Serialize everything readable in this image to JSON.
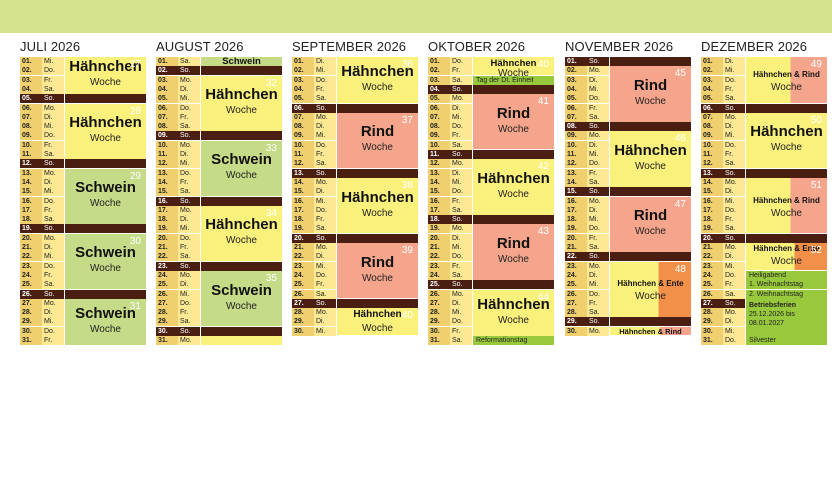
{
  "colors": {
    "top_bar": "#d5e38f",
    "weekday_row": "#fde993",
    "day_num_cell": "#f0d06e",
    "sunday_band": "#4a1f12",
    "haehnchen": "#faf17d",
    "rind": "#f4a58c",
    "schwein": "#c6db88",
    "ente": "#f29049",
    "holiday_green": "#98c93c",
    "week_number": "#ffffff"
  },
  "months": [
    {
      "title": "JULI 2026",
      "days": [
        [
          "01.",
          "Mi."
        ],
        [
          "02.",
          "Do."
        ],
        [
          "03.",
          "Fr."
        ],
        [
          "04.",
          "Sa."
        ],
        [
          "05.",
          "So."
        ],
        [
          "06.",
          "Mo."
        ],
        [
          "07.",
          "Di."
        ],
        [
          "08.",
          "Mi."
        ],
        [
          "09.",
          "Do."
        ],
        [
          "10.",
          "Fr."
        ],
        [
          "11.",
          "Sa."
        ],
        [
          "12.",
          "So."
        ],
        [
          "13.",
          "Mo."
        ],
        [
          "14.",
          "Di."
        ],
        [
          "15.",
          "Mi."
        ],
        [
          "16.",
          "Do."
        ],
        [
          "17.",
          "Fr."
        ],
        [
          "18.",
          "Sa."
        ],
        [
          "19.",
          "So."
        ],
        [
          "20.",
          "Mo."
        ],
        [
          "21.",
          "Di."
        ],
        [
          "22.",
          "Mi."
        ],
        [
          "23.",
          "Do."
        ],
        [
          "24.",
          "Fr."
        ],
        [
          "25.",
          "Sa."
        ],
        [
          "26.",
          "So."
        ],
        [
          "27.",
          "Mo."
        ],
        [
          "28.",
          "Di."
        ],
        [
          "29.",
          "Mi."
        ],
        [
          "30.",
          "Do."
        ],
        [
          "31.",
          "Fr."
        ]
      ],
      "blocks": [
        {
          "start": 0,
          "rows": 4,
          "type": "haehnchen",
          "title": "Hähnchen",
          "label": "Woche",
          "kw": "27"
        },
        {
          "start": 5,
          "rows": 6,
          "type": "haehnchen",
          "title": "Hähnchen",
          "label": "Woche",
          "kw": "28"
        },
        {
          "start": 12,
          "rows": 6,
          "type": "schwein",
          "title": "Schwein",
          "label": "Woche",
          "kw": "29"
        },
        {
          "start": 19,
          "rows": 6,
          "type": "schwein",
          "title": "Schwein",
          "label": "Woche",
          "kw": "30"
        },
        {
          "start": 26,
          "rows": 5,
          "type": "schwein",
          "title": "Schwein",
          "label": "Woche",
          "kw": "31"
        }
      ],
      "notes": []
    },
    {
      "title": "AUGUST 2026",
      "days": [
        [
          "01.",
          "Sa."
        ],
        [
          "02.",
          "So."
        ],
        [
          "03.",
          "Mo."
        ],
        [
          "04.",
          "Di."
        ],
        [
          "05.",
          "Mi."
        ],
        [
          "06.",
          "Do."
        ],
        [
          "07.",
          "Fr."
        ],
        [
          "08.",
          "Sa."
        ],
        [
          "09.",
          "So."
        ],
        [
          "10.",
          "Mo."
        ],
        [
          "11.",
          "Di."
        ],
        [
          "12.",
          "Mi."
        ],
        [
          "13.",
          "Do."
        ],
        [
          "14.",
          "Fr."
        ],
        [
          "15.",
          "Sa."
        ],
        [
          "16.",
          "So."
        ],
        [
          "17.",
          "Mo."
        ],
        [
          "18.",
          "Di."
        ],
        [
          "19.",
          "Mi."
        ],
        [
          "20.",
          "Do."
        ],
        [
          "21.",
          "Fr."
        ],
        [
          "22.",
          "Sa."
        ],
        [
          "23.",
          "So."
        ],
        [
          "24.",
          "Mo."
        ],
        [
          "25.",
          "Di."
        ],
        [
          "26.",
          "Mi."
        ],
        [
          "27.",
          "Do."
        ],
        [
          "28.",
          "Fr."
        ],
        [
          "29.",
          "Sa."
        ],
        [
          "30.",
          "So."
        ],
        [
          "31.",
          "Mo."
        ]
      ],
      "blocks": [
        {
          "start": 0,
          "rows": 1,
          "type": "schwein",
          "title": "Schwein",
          "label": "",
          "kw": ""
        },
        {
          "start": 2,
          "rows": 6,
          "type": "haehnchen",
          "title": "Hähnchen",
          "label": "Woche",
          "kw": "32"
        },
        {
          "start": 9,
          "rows": 6,
          "type": "schwein",
          "title": "Schwein",
          "label": "Woche",
          "kw": "33"
        },
        {
          "start": 16,
          "rows": 6,
          "type": "haehnchen",
          "title": "Hähnchen",
          "label": "Woche",
          "kw": "34"
        },
        {
          "start": 23,
          "rows": 6,
          "type": "schwein",
          "title": "Schwein",
          "label": "Woche",
          "kw": "35"
        },
        {
          "start": 30,
          "rows": 1,
          "type": "haehnchen",
          "title": "",
          "label": "",
          "kw": ""
        }
      ],
      "notes": []
    },
    {
      "title": "SEPTEMBER 2026",
      "days": [
        [
          "01.",
          "Di."
        ],
        [
          "02.",
          "Mi."
        ],
        [
          "03.",
          "Do."
        ],
        [
          "04.",
          "Fr."
        ],
        [
          "05.",
          "Sa."
        ],
        [
          "06.",
          "So."
        ],
        [
          "07.",
          "Mo."
        ],
        [
          "08.",
          "Di."
        ],
        [
          "09.",
          "Mi."
        ],
        [
          "10.",
          "Do."
        ],
        [
          "11.",
          "Fr."
        ],
        [
          "12.",
          "Sa."
        ],
        [
          "13.",
          "So."
        ],
        [
          "14.",
          "Mo."
        ],
        [
          "15.",
          "Di."
        ],
        [
          "16.",
          "Mi."
        ],
        [
          "17.",
          "Do."
        ],
        [
          "18.",
          "Fr."
        ],
        [
          "19.",
          "Sa."
        ],
        [
          "20.",
          "So."
        ],
        [
          "21.",
          "Mo."
        ],
        [
          "22.",
          "Di."
        ],
        [
          "23.",
          "Mi."
        ],
        [
          "24.",
          "Do."
        ],
        [
          "25.",
          "Fr."
        ],
        [
          "26.",
          "Sa."
        ],
        [
          "27.",
          "So."
        ],
        [
          "28.",
          "Mo."
        ],
        [
          "29.",
          "Di."
        ],
        [
          "30.",
          "Mi."
        ]
      ],
      "blocks": [
        {
          "start": 0,
          "rows": 5,
          "type": "haehnchen",
          "title": "Hähnchen",
          "label": "Woche",
          "kw": "36"
        },
        {
          "start": 6,
          "rows": 6,
          "type": "rind",
          "title": "Rind",
          "label": "Woche",
          "kw": "37"
        },
        {
          "start": 13,
          "rows": 6,
          "type": "haehnchen",
          "title": "Hähnchen",
          "label": "Woche",
          "kw": "38"
        },
        {
          "start": 20,
          "rows": 6,
          "type": "rind",
          "title": "Rind",
          "label": "Woche",
          "kw": "39"
        },
        {
          "start": 27,
          "rows": 3,
          "type": "haehnchen",
          "title": "Hähnchen",
          "label": "Woche",
          "kw": "40"
        }
      ],
      "notes": []
    },
    {
      "title": "OKTOBER 2026",
      "days": [
        [
          "01.",
          "Do."
        ],
        [
          "02.",
          "Fr."
        ],
        [
          "03.",
          "Sa."
        ],
        [
          "04.",
          "So."
        ],
        [
          "05.",
          "Mo."
        ],
        [
          "06.",
          "Di."
        ],
        [
          "07.",
          "Mi."
        ],
        [
          "08.",
          "Do."
        ],
        [
          "09.",
          "Fr."
        ],
        [
          "10.",
          "Sa."
        ],
        [
          "11.",
          "So."
        ],
        [
          "12.",
          "Mo."
        ],
        [
          "13.",
          "Di."
        ],
        [
          "14.",
          "Mi."
        ],
        [
          "15.",
          "Do."
        ],
        [
          "16.",
          "Fr."
        ],
        [
          "17.",
          "Sa."
        ],
        [
          "18.",
          "So."
        ],
        [
          "19.",
          "Mo."
        ],
        [
          "20.",
          "Di."
        ],
        [
          "21.",
          "Mi."
        ],
        [
          "22.",
          "Do."
        ],
        [
          "23.",
          "Fr."
        ],
        [
          "24.",
          "Sa."
        ],
        [
          "25.",
          "So."
        ],
        [
          "26.",
          "Mo."
        ],
        [
          "27.",
          "Di."
        ],
        [
          "28.",
          "Mi."
        ],
        [
          "29.",
          "Do."
        ],
        [
          "30.",
          "Fr."
        ],
        [
          "31.",
          "Sa."
        ]
      ],
      "blocks": [
        {
          "start": 0,
          "rows": 2,
          "type": "haehnchen",
          "title": "Hähnchen",
          "label": "Woche",
          "kw": "40"
        },
        {
          "start": 4,
          "rows": 6,
          "type": "rind",
          "title": "Rind",
          "label": "Woche",
          "kw": "41"
        },
        {
          "start": 11,
          "rows": 6,
          "type": "haehnchen",
          "title": "Hähnchen",
          "label": "Woche",
          "kw": "42"
        },
        {
          "start": 18,
          "rows": 6,
          "type": "rind",
          "title": "Rind",
          "label": "Woche",
          "kw": "43"
        },
        {
          "start": 25,
          "rows": 5,
          "type": "haehnchen",
          "title": "Hähnchen",
          "label": "Woche",
          "kw": "44"
        }
      ],
      "notes": [
        {
          "row": 2,
          "text": "Tag der Dt. Einheit"
        },
        {
          "row": 30,
          "text": "Reformationstag"
        }
      ]
    },
    {
      "title": "NOVEMBER 2026",
      "days": [
        [
          "01.",
          "So."
        ],
        [
          "02.",
          "Mo."
        ],
        [
          "03.",
          "Di."
        ],
        [
          "04.",
          "Mi."
        ],
        [
          "05.",
          "Do."
        ],
        [
          "06.",
          "Fr."
        ],
        [
          "07.",
          "Sa."
        ],
        [
          "08.",
          "So."
        ],
        [
          "09.",
          "Mo."
        ],
        [
          "10.",
          "Di."
        ],
        [
          "11.",
          "Mi."
        ],
        [
          "12.",
          "Do."
        ],
        [
          "13.",
          "Fr."
        ],
        [
          "14.",
          "Sa."
        ],
        [
          "15.",
          "So."
        ],
        [
          "16.",
          "Mo."
        ],
        [
          "17.",
          "Di."
        ],
        [
          "18.",
          "Mi."
        ],
        [
          "19.",
          "Do."
        ],
        [
          "20.",
          "Fr."
        ],
        [
          "21.",
          "Sa."
        ],
        [
          "22.",
          "So."
        ],
        [
          "23.",
          "Mo."
        ],
        [
          "24.",
          "Di."
        ],
        [
          "25.",
          "Mi."
        ],
        [
          "26.",
          "Do."
        ],
        [
          "27.",
          "Fr."
        ],
        [
          "28.",
          "Sa."
        ],
        [
          "29.",
          "So."
        ],
        [
          "30.",
          "Mo."
        ]
      ],
      "blocks": [
        {
          "start": 1,
          "rows": 6,
          "type": "rind",
          "title": "Rind",
          "label": "Woche",
          "kw": "45"
        },
        {
          "start": 8,
          "rows": 6,
          "type": "haehnchen",
          "title": "Hähnchen",
          "label": "Woche",
          "kw": "46"
        },
        {
          "start": 15,
          "rows": 6,
          "type": "rind",
          "title": "Rind",
          "label": "Woche",
          "kw": "47"
        },
        {
          "start": 22,
          "rows": 6,
          "type": "haehnchen_ente",
          "title": "Hähnchen & Ente",
          "label": "Woche",
          "kw": "48"
        },
        {
          "start": 29,
          "rows": 1,
          "type": "haehnchen_rind_small",
          "title": "Hähnchen & Rind",
          "label": "",
          "kw": ""
        }
      ],
      "notes": []
    },
    {
      "title": "DEZEMBER 2026",
      "days": [
        [
          "01.",
          "Di."
        ],
        [
          "02.",
          "Mi."
        ],
        [
          "03.",
          "Do."
        ],
        [
          "04.",
          "Fr."
        ],
        [
          "05.",
          "Sa."
        ],
        [
          "06.",
          "So."
        ],
        [
          "07.",
          "Mo."
        ],
        [
          "08.",
          "Di."
        ],
        [
          "09.",
          "Mi."
        ],
        [
          "10.",
          "Do."
        ],
        [
          "11.",
          "Fr."
        ],
        [
          "12.",
          "Sa."
        ],
        [
          "13.",
          "So."
        ],
        [
          "14.",
          "Mo."
        ],
        [
          "15.",
          "Di."
        ],
        [
          "16.",
          "Mi."
        ],
        [
          "17.",
          "Do."
        ],
        [
          "18.",
          "Fr."
        ],
        [
          "19.",
          "Sa."
        ],
        [
          "20.",
          "So."
        ],
        [
          "21.",
          "Mo."
        ],
        [
          "22.",
          "Di."
        ],
        [
          "23.",
          "Mi."
        ],
        [
          "24.",
          "Do."
        ],
        [
          "25.",
          "Fr."
        ],
        [
          "26.",
          "Sa."
        ],
        [
          "27.",
          "So."
        ],
        [
          "28.",
          "Mo."
        ],
        [
          "29.",
          "Di."
        ],
        [
          "30.",
          "Mi."
        ],
        [
          "31.",
          "Do."
        ]
      ],
      "blocks": [
        {
          "start": 0,
          "rows": 5,
          "type": "haehnchen_rind",
          "title": "Hähnchen & Rind",
          "label": "Woche",
          "kw": "49"
        },
        {
          "start": 6,
          "rows": 6,
          "type": "haehnchen",
          "title": "Hähnchen",
          "label": "Woche",
          "kw": "50"
        },
        {
          "start": 13,
          "rows": 6,
          "type": "haehnchen_rind",
          "title": "Hähnchen & Rind",
          "label": "Woche",
          "kw": "51"
        },
        {
          "start": 20,
          "rows": 3,
          "type": "haehnchen_ente",
          "title": "Hähnchen & Ente",
          "label": "Woche",
          "kw": "52"
        }
      ],
      "notes": [
        {
          "row": 23,
          "text": "Heiligabend"
        },
        {
          "row": 24,
          "text": "1. Weihnachtstag"
        },
        {
          "row": 25,
          "text": "2. Weihnachtstag"
        },
        {
          "row": 30,
          "text": "Silvester"
        }
      ],
      "ferien": {
        "title": "Betriebsferien",
        "text": "25.12.2026 bis 08.01.2027"
      }
    }
  ]
}
